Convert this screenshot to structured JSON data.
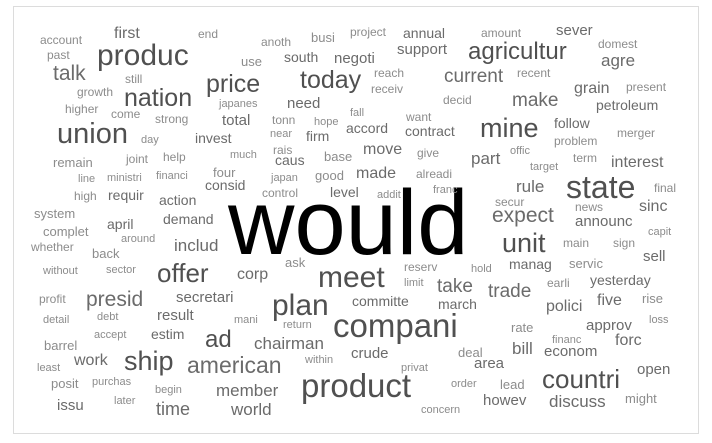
{
  "chart_data": {
    "type": "wordcloud",
    "words": [
      {
        "text": "would",
        "weight": 100
      },
      {
        "text": "compani",
        "weight": 40
      },
      {
        "text": "product",
        "weight": 40
      },
      {
        "text": "produc",
        "weight": 36
      },
      {
        "text": "state",
        "weight": 33
      },
      {
        "text": "meet",
        "weight": 31
      },
      {
        "text": "plan",
        "weight": 31
      },
      {
        "text": "union",
        "weight": 30
      },
      {
        "text": "mine",
        "weight": 28
      },
      {
        "text": "ship",
        "weight": 28
      },
      {
        "text": "countri",
        "weight": 27
      },
      {
        "text": "unit",
        "weight": 28
      },
      {
        "text": "offer",
        "weight": 27
      },
      {
        "text": "today",
        "weight": 26
      },
      {
        "text": "nation",
        "weight": 26
      },
      {
        "text": "price",
        "weight": 25
      },
      {
        "text": "agricultur",
        "weight": 24
      },
      {
        "text": "american",
        "weight": 23
      },
      {
        "text": "ad",
        "weight": 24
      },
      {
        "text": "presid",
        "weight": 21
      },
      {
        "text": "expect",
        "weight": 21
      },
      {
        "text": "talk",
        "weight": 21
      },
      {
        "text": "make",
        "weight": 19
      },
      {
        "text": "current",
        "weight": 19
      },
      {
        "text": "take",
        "weight": 19
      },
      {
        "text": "trade",
        "weight": 19
      },
      {
        "text": "time",
        "weight": 18
      },
      {
        "text": "chairman",
        "weight": 17
      },
      {
        "text": "world",
        "weight": 17
      },
      {
        "text": "member",
        "weight": 17
      },
      {
        "text": "discuss",
        "weight": 17
      },
      {
        "text": "includ",
        "weight": 17
      },
      {
        "text": "rule",
        "weight": 17
      },
      {
        "text": "bill",
        "weight": 17
      },
      {
        "text": "part",
        "weight": 17
      },
      {
        "text": "move",
        "weight": 16
      },
      {
        "text": "agre",
        "weight": 17
      },
      {
        "text": "grain",
        "weight": 16
      },
      {
        "text": "interest",
        "weight": 16
      },
      {
        "text": "polici",
        "weight": 16
      },
      {
        "text": "five",
        "weight": 16
      },
      {
        "text": "forc",
        "weight": 16
      },
      {
        "text": "open",
        "weight": 15
      },
      {
        "text": "issu",
        "weight": 15
      },
      {
        "text": "work",
        "weight": 16
      },
      {
        "text": "sinc",
        "weight": 16
      },
      {
        "text": "sell",
        "weight": 15
      },
      {
        "text": "first",
        "weight": 16
      },
      {
        "text": "corp",
        "weight": 16
      },
      {
        "text": "need",
        "weight": 15
      },
      {
        "text": "made",
        "weight": 16
      },
      {
        "text": "crude",
        "weight": 15
      },
      {
        "text": "area",
        "weight": 15
      },
      {
        "text": "howev",
        "weight": 15
      },
      {
        "text": "econom",
        "weight": 15
      },
      {
        "text": "approv",
        "weight": 15
      },
      {
        "text": "result",
        "weight": 15
      },
      {
        "text": "secretari",
        "weight": 15
      },
      {
        "text": "sever",
        "weight": 15
      },
      {
        "text": "support",
        "weight": 15
      },
      {
        "text": "negoti",
        "weight": 15
      },
      {
        "text": "south",
        "weight": 14
      },
      {
        "text": "total",
        "weight": 15
      },
      {
        "text": "contract",
        "weight": 14
      },
      {
        "text": "accord",
        "weight": 14
      },
      {
        "text": "announc",
        "weight": 15
      },
      {
        "text": "yesterday",
        "weight": 14
      },
      {
        "text": "manag",
        "weight": 14
      },
      {
        "text": "committe",
        "weight": 14
      },
      {
        "text": "estim",
        "weight": 14
      },
      {
        "text": "demand",
        "weight": 14
      },
      {
        "text": "action",
        "weight": 14
      },
      {
        "text": "consid",
        "weight": 14
      },
      {
        "text": "requir",
        "weight": 14
      },
      {
        "text": "firm",
        "weight": 14
      },
      {
        "text": "petroleum",
        "weight": 14
      },
      {
        "text": "follow",
        "weight": 14
      },
      {
        "text": "annual",
        "weight": 14
      },
      {
        "text": "level",
        "weight": 14
      },
      {
        "text": "good",
        "weight": 13
      },
      {
        "text": "caus",
        "weight": 14
      },
      {
        "text": "invest",
        "weight": 14
      },
      {
        "text": "march",
        "weight": 14
      },
      {
        "text": "rate",
        "weight": 13
      },
      {
        "text": "lead",
        "weight": 13
      },
      {
        "text": "rise",
        "weight": 13
      },
      {
        "text": "might",
        "weight": 13
      },
      {
        "text": "servic",
        "weight": 13
      },
      {
        "text": "april",
        "weight": 14
      },
      {
        "text": "ask",
        "weight": 13
      },
      {
        "text": "busi",
        "weight": 13
      },
      {
        "text": "remain",
        "weight": 13
      },
      {
        "text": "system",
        "weight": 13
      },
      {
        "text": "complet",
        "weight": 13
      },
      {
        "text": "deal",
        "weight": 13
      },
      {
        "text": "barrel",
        "weight": 13
      },
      {
        "text": "posit",
        "weight": 13
      },
      {
        "text": "profit",
        "weight": 12
      },
      {
        "text": "base",
        "weight": 13
      },
      {
        "text": "four",
        "weight": 13
      },
      {
        "text": "back",
        "weight": 13
      },
      {
        "text": "use",
        "weight": 13
      },
      {
        "text": "reserv",
        "weight": 12
      },
      {
        "text": "help",
        "weight": 12
      },
      {
        "text": "joint",
        "weight": 12
      },
      {
        "text": "decid",
        "weight": 12
      },
      {
        "text": "want",
        "weight": 12
      },
      {
        "text": "give",
        "weight": 12
      },
      {
        "text": "alreadi",
        "weight": 12
      },
      {
        "text": "secur",
        "weight": 12
      },
      {
        "text": "main",
        "weight": 12
      },
      {
        "text": "sign",
        "weight": 12
      },
      {
        "text": "earli",
        "weight": 12
      },
      {
        "text": "merger",
        "weight": 12
      },
      {
        "text": "final",
        "weight": 12
      },
      {
        "text": "term",
        "weight": 12
      },
      {
        "text": "problem",
        "weight": 12
      },
      {
        "text": "news",
        "weight": 12
      },
      {
        "text": "still",
        "weight": 12
      },
      {
        "text": "domest",
        "weight": 12
      },
      {
        "text": "recent",
        "weight": 12
      },
      {
        "text": "present",
        "weight": 12
      },
      {
        "text": "account",
        "weight": 12
      },
      {
        "text": "past",
        "weight": 12
      },
      {
        "text": "end",
        "weight": 12
      },
      {
        "text": "anoth",
        "weight": 12
      },
      {
        "text": "project",
        "weight": 12
      },
      {
        "text": "amount",
        "weight": 12
      },
      {
        "text": "reach",
        "weight": 12
      },
      {
        "text": "receiv",
        "weight": 12
      },
      {
        "text": "growth",
        "weight": 12
      },
      {
        "text": "higher",
        "weight": 12
      },
      {
        "text": "come",
        "weight": 12
      },
      {
        "text": "strong",
        "weight": 12
      },
      {
        "text": "japanes",
        "weight": 11
      },
      {
        "text": "tonn",
        "weight": 12
      },
      {
        "text": "hope",
        "weight": 11
      },
      {
        "text": "fall",
        "weight": 11
      },
      {
        "text": "near",
        "weight": 11
      },
      {
        "text": "rais",
        "weight": 12
      },
      {
        "text": "day",
        "weight": 11
      },
      {
        "text": "much",
        "weight": 11
      },
      {
        "text": "offic",
        "weight": 11
      },
      {
        "text": "target",
        "weight": 11
      },
      {
        "text": "line",
        "weight": 11
      },
      {
        "text": "ministri",
        "weight": 11
      },
      {
        "text": "financi",
        "weight": 11
      },
      {
        "text": "japan",
        "weight": 11
      },
      {
        "text": "control",
        "weight": 12
      },
      {
        "text": "addit",
        "weight": 11
      },
      {
        "text": "franc",
        "weight": 11
      },
      {
        "text": "high",
        "weight": 12
      },
      {
        "text": "capit",
        "weight": 11
      },
      {
        "text": "around",
        "weight": 11
      },
      {
        "text": "whether",
        "weight": 12
      },
      {
        "text": "without",
        "weight": 11
      },
      {
        "text": "sector",
        "weight": 11
      },
      {
        "text": "hold",
        "weight": 11
      },
      {
        "text": "limit",
        "weight": 11
      },
      {
        "text": "detail",
        "weight": 11
      },
      {
        "text": "debt",
        "weight": 11
      },
      {
        "text": "mani",
        "weight": 11
      },
      {
        "text": "return",
        "weight": 11
      },
      {
        "text": "loss",
        "weight": 11
      },
      {
        "text": "accept",
        "weight": 11
      },
      {
        "text": "financ",
        "weight": 11
      },
      {
        "text": "least",
        "weight": 11
      },
      {
        "text": "within",
        "weight": 11
      },
      {
        "text": "privat",
        "weight": 11
      },
      {
        "text": "purchas",
        "weight": 11
      },
      {
        "text": "begin",
        "weight": 11
      },
      {
        "text": "order",
        "weight": 11
      },
      {
        "text": "later",
        "weight": 11
      },
      {
        "text": "concern",
        "weight": 11
      }
    ],
    "colors": {
      "dominant": "#000000",
      "large": "#505050",
      "medium": "#6b6b6b",
      "small": "#8c8c8c"
    }
  }
}
